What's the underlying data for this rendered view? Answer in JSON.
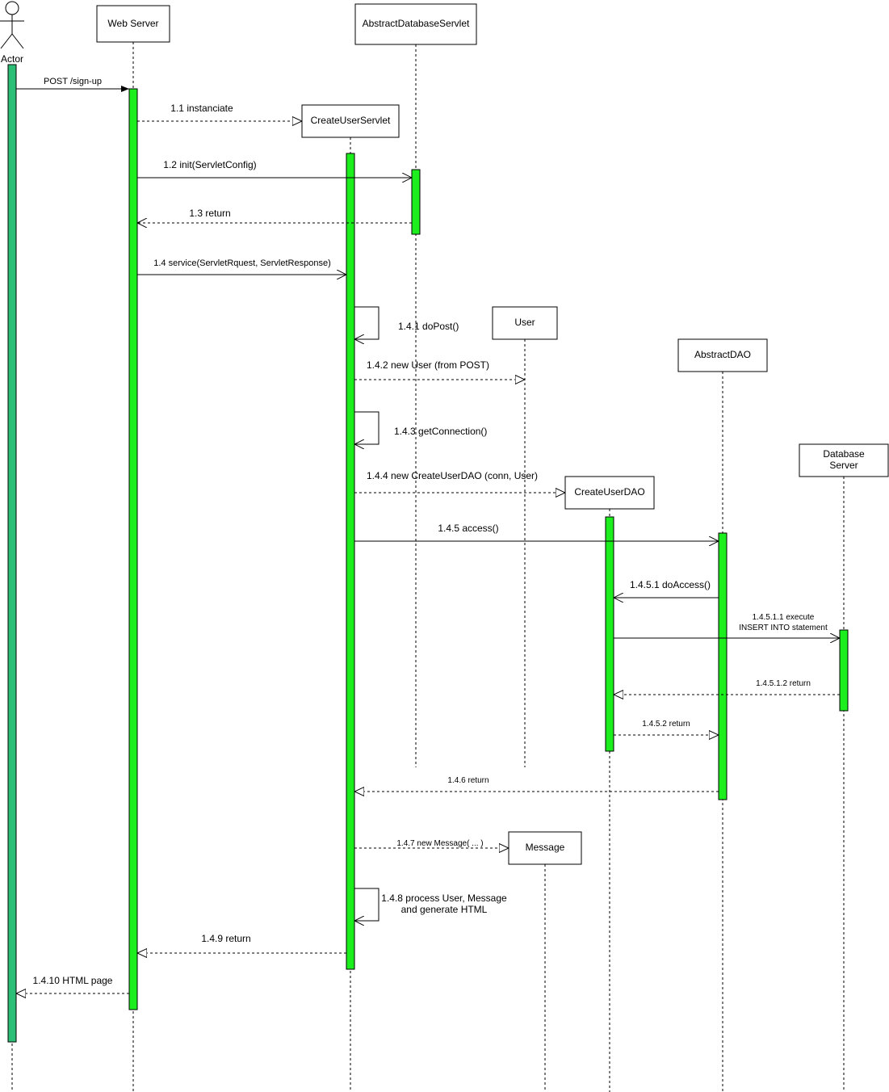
{
  "colors": {
    "activation_primary": "#1dee1d",
    "activation_actor": "#2dbe76",
    "line": "#000000",
    "background": "#ffffff"
  },
  "participants": {
    "actor": "Actor",
    "web_server": "Web Server",
    "abstract_db_servlet": "AbstractDatabaseServlet",
    "create_user_servlet": "CreateUserServlet",
    "user": "User",
    "abstract_dao": "AbstractDAO",
    "database_server_line1": "Database",
    "database_server_line2": "Server",
    "create_user_dao": "CreateUserDAO",
    "message": "Message"
  },
  "messages": {
    "m0": "POST /sign-up",
    "m1_1": "1.1 instanciate",
    "m1_2": "1.2 init(ServletConfig)",
    "m1_3": "1.3 return",
    "m1_4": "1.4 service(ServletRquest, ServletResponse)",
    "m1_4_1": "1.4.1 doPost()",
    "m1_4_2": "1.4.2 new User (from POST)",
    "m1_4_3": "1.4.3 getConnection()",
    "m1_4_4": "1.4.4 new CreateUserDAO (conn, User)",
    "m1_4_5": "1.4.5 access()",
    "m1_4_5_1": "1.4.5.1 doAccess()",
    "m1_4_5_1_1_line1": "1.4.5.1.1 execute",
    "m1_4_5_1_1_line2": "INSERT INTO statement",
    "m1_4_5_1_2": "1.4.5.1.2 return",
    "m1_4_5_2": "1.4.5.2 return",
    "m1_4_6": "1.4.6 return",
    "m1_4_7": "1.4.7 new Message( ... )",
    "m1_4_8_line1": "1.4.8 process User, Message",
    "m1_4_8_line2": "and generate HTML",
    "m1_4_9": "1.4.9 return",
    "m1_4_10": "1.4.10 HTML page"
  }
}
